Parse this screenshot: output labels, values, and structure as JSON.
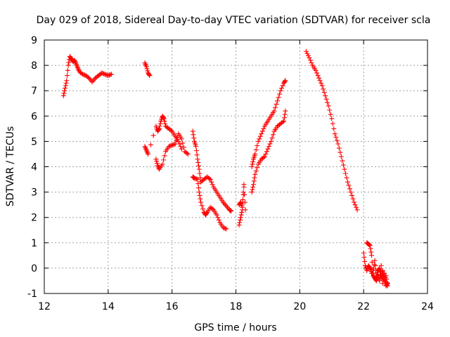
{
  "chart_data": {
    "type": "scatter",
    "title": "Day 029 of 2018, Sidereal Day-to-day VTEC variation (SDTVAR) for receiver scla",
    "xlabel": "GPS time / hours",
    "ylabel": "SDTVAR / TECUs",
    "xlim": [
      12,
      24
    ],
    "ylim": [
      -1,
      9
    ],
    "xticks": [
      12,
      14,
      16,
      18,
      20,
      22,
      24
    ],
    "yticks": [
      -1,
      0,
      1,
      2,
      3,
      4,
      5,
      6,
      7,
      8,
      9
    ],
    "grid": true,
    "marker": "+",
    "color": "#ff0000",
    "series": [
      {
        "name": "SDTVAR",
        "segments": [
          [
            [
              12.6,
              6.8
            ],
            [
              12.65,
              7.1
            ],
            [
              12.7,
              7.4
            ],
            [
              12.75,
              8.0
            ],
            [
              12.8,
              8.35
            ],
            [
              12.85,
              8.25
            ],
            [
              12.9,
              8.15
            ],
            [
              12.95,
              8.2
            ],
            [
              13.0,
              8.05
            ],
            [
              13.05,
              7.9
            ],
            [
              13.1,
              7.75
            ],
            [
              13.2,
              7.65
            ],
            [
              13.3,
              7.6
            ],
            [
              13.4,
              7.5
            ],
            [
              13.5,
              7.35
            ],
            [
              13.6,
              7.5
            ],
            [
              13.7,
              7.6
            ],
            [
              13.8,
              7.7
            ],
            [
              13.9,
              7.65
            ],
            [
              14.0,
              7.6
            ],
            [
              14.1,
              7.65
            ]
          ],
          [
            [
              15.15,
              8.1
            ],
            [
              15.2,
              7.95
            ],
            [
              15.25,
              7.7
            ],
            [
              15.3,
              7.6
            ]
          ],
          [
            [
              15.15,
              4.8
            ],
            [
              15.2,
              4.65
            ],
            [
              15.25,
              4.5
            ],
            [
              15.5,
              5.6
            ],
            [
              15.55,
              5.4
            ],
            [
              15.6,
              5.5
            ],
            [
              15.65,
              5.8
            ],
            [
              15.7,
              6.0
            ],
            [
              15.75,
              5.9
            ],
            [
              15.8,
              5.6
            ],
            [
              15.9,
              5.5
            ],
            [
              16.0,
              5.4
            ],
            [
              16.1,
              5.2
            ],
            [
              16.2,
              5.0
            ],
            [
              16.3,
              4.7
            ]
          ],
          [
            [
              15.5,
              4.3
            ],
            [
              15.55,
              4.05
            ],
            [
              15.6,
              3.9
            ],
            [
              15.7,
              4.1
            ],
            [
              15.8,
              4.6
            ],
            [
              15.9,
              4.8
            ],
            [
              16.0,
              4.85
            ],
            [
              16.1,
              4.9
            ],
            [
              16.2,
              5.3
            ],
            [
              16.3,
              5.1
            ],
            [
              16.4,
              4.6
            ],
            [
              16.5,
              4.5
            ]
          ],
          [
            [
              16.65,
              5.4
            ],
            [
              16.7,
              5.0
            ],
            [
              16.75,
              4.8
            ],
            [
              16.8,
              4.3
            ],
            [
              16.85,
              3.9
            ],
            [
              16.9,
              3.4
            ],
            [
              17.0,
              3.5
            ],
            [
              17.1,
              3.6
            ],
            [
              17.2,
              3.5
            ],
            [
              17.3,
              3.2
            ],
            [
              17.4,
              3.0
            ],
            [
              17.5,
              2.8
            ],
            [
              17.6,
              2.6
            ],
            [
              17.7,
              2.45
            ],
            [
              17.8,
              2.3
            ],
            [
              17.85,
              2.25
            ]
          ],
          [
            [
              16.65,
              3.6
            ],
            [
              16.7,
              3.55
            ],
            [
              16.8,
              3.5
            ],
            [
              16.85,
              3.0
            ],
            [
              16.9,
              2.6
            ],
            [
              17.0,
              2.2
            ],
            [
              17.05,
              2.1
            ],
            [
              17.1,
              2.2
            ],
            [
              17.2,
              2.4
            ],
            [
              17.3,
              2.3
            ],
            [
              17.4,
              2.1
            ],
            [
              17.5,
              1.8
            ],
            [
              17.6,
              1.6
            ],
            [
              17.7,
              1.55
            ]
          ],
          [
            [
              18.1,
              1.7
            ],
            [
              18.15,
              2.0
            ],
            [
              18.2,
              2.3
            ],
            [
              18.25,
              3.2
            ],
            [
              18.3,
              2.3
            ]
          ],
          [
            [
              18.1,
              2.5
            ],
            [
              18.15,
              2.6
            ],
            [
              18.2,
              2.4
            ],
            [
              18.25,
              3.3
            ]
          ],
          [
            [
              18.5,
              3.0
            ],
            [
              18.55,
              3.3
            ],
            [
              18.6,
              3.7
            ],
            [
              18.7,
              4.1
            ],
            [
              18.8,
              4.3
            ],
            [
              18.9,
              4.4
            ],
            [
              19.0,
              4.7
            ],
            [
              19.1,
              5.0
            ],
            [
              19.2,
              5.4
            ],
            [
              19.3,
              5.6
            ],
            [
              19.4,
              5.7
            ],
            [
              19.5,
              5.8
            ],
            [
              19.55,
              6.2
            ]
          ],
          [
            [
              18.5,
              4.0
            ],
            [
              18.55,
              4.3
            ],
            [
              18.6,
              4.5
            ],
            [
              18.7,
              5.0
            ],
            [
              18.8,
              5.3
            ],
            [
              18.9,
              5.6
            ],
            [
              19.0,
              5.8
            ],
            [
              19.1,
              6.0
            ],
            [
              19.2,
              6.2
            ],
            [
              19.3,
              6.6
            ],
            [
              19.4,
              7.0
            ],
            [
              19.5,
              7.3
            ],
            [
              19.55,
              7.4
            ]
          ],
          [
            [
              20.2,
              8.55
            ],
            [
              20.3,
              8.3
            ],
            [
              20.4,
              8.0
            ],
            [
              20.5,
              7.8
            ],
            [
              20.6,
              7.5
            ],
            [
              20.7,
              7.2
            ],
            [
              20.8,
              6.8
            ],
            [
              20.9,
              6.4
            ],
            [
              21.0,
              5.9
            ],
            [
              21.1,
              5.3
            ],
            [
              21.2,
              4.9
            ],
            [
              21.3,
              4.4
            ],
            [
              21.4,
              3.9
            ],
            [
              21.5,
              3.4
            ],
            [
              21.6,
              3.0
            ],
            [
              21.7,
              2.6
            ],
            [
              21.8,
              2.3
            ]
          ],
          [
            [
              22.0,
              0.6
            ],
            [
              22.05,
              0.1
            ],
            [
              22.1,
              -0.1
            ],
            [
              22.15,
              0.1
            ],
            [
              22.2,
              0.0
            ],
            [
              22.25,
              -0.2
            ],
            [
              22.3,
              -0.2
            ],
            [
              22.35,
              0.3
            ],
            [
              22.4,
              -0.3
            ],
            [
              22.45,
              -0.1
            ],
            [
              22.5,
              0.0
            ],
            [
              22.55,
              -0.4
            ],
            [
              22.6,
              -0.1
            ],
            [
              22.65,
              -0.5
            ],
            [
              22.7,
              -0.3
            ],
            [
              22.75,
              -0.7
            ]
          ],
          [
            [
              22.1,
              1.0
            ],
            [
              22.15,
              0.95
            ],
            [
              22.2,
              0.9
            ],
            [
              22.25,
              0.5
            ],
            [
              22.3,
              -0.3
            ],
            [
              22.35,
              -0.4
            ],
            [
              22.4,
              -0.5
            ],
            [
              22.45,
              -0.3
            ],
            [
              22.5,
              -0.5
            ],
            [
              22.55,
              0.1
            ],
            [
              22.6,
              -0.6
            ],
            [
              22.65,
              -0.2
            ],
            [
              22.7,
              -0.7
            ],
            [
              22.75,
              -0.6
            ]
          ]
        ]
      }
    ]
  }
}
